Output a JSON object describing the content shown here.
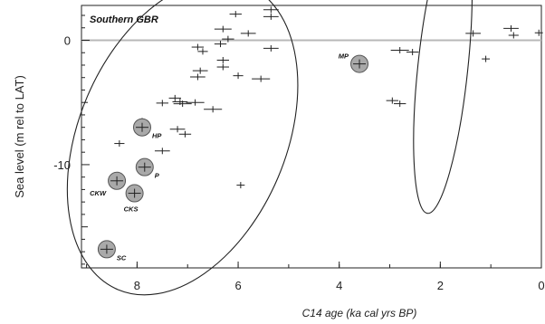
{
  "chart_data": {
    "type": "scatter",
    "title": "Southern GBR",
    "xlabel": "C14 age (ka cal yrs BP)",
    "ylabel": "Sea level (m rel to LAT)",
    "xlim": [
      9.1,
      0
    ],
    "ylim": [
      -18.3,
      2.8
    ],
    "x_ticks": [
      {
        "value": 8,
        "label": "8"
      },
      {
        "value": 6,
        "label": "6"
      },
      {
        "value": 4,
        "label": "4"
      },
      {
        "value": 2,
        "label": "2"
      },
      {
        "value": 0,
        "label": "0"
      }
    ],
    "y_ticks": [
      {
        "value": 0,
        "label": "0"
      },
      {
        "value": -10,
        "label": "-10"
      }
    ],
    "reference_line_y": 0,
    "points": [
      {
        "x": 6.3,
        "y": 0.9,
        "xerr": 0.17
      },
      {
        "x": 6.05,
        "y": 2.1,
        "xerr": 0.12
      },
      {
        "x": 5.35,
        "y": 2.45,
        "xerr": 0.15
      },
      {
        "x": 5.35,
        "y": 1.9,
        "xerr": 0.15
      },
      {
        "x": 5.8,
        "y": 0.55,
        "xerr": 0.15
      },
      {
        "x": 6.2,
        "y": 0.1,
        "xerr": 0.12
      },
      {
        "x": 6.8,
        "y": -0.55,
        "xerr": 0.12
      },
      {
        "x": 6.7,
        "y": -0.9,
        "xerr": 0.1
      },
      {
        "x": 6.35,
        "y": -0.3,
        "xerr": 0.12
      },
      {
        "x": 5.35,
        "y": -0.65,
        "xerr": 0.15
      },
      {
        "x": 6.3,
        "y": -1.6,
        "xerr": 0.12
      },
      {
        "x": 6.3,
        "y": -2.15,
        "xerr": 0.12
      },
      {
        "x": 6.75,
        "y": -2.45,
        "xerr": 0.15
      },
      {
        "x": 6.8,
        "y": -2.95,
        "xerr": 0.15
      },
      {
        "x": 6.0,
        "y": -2.85,
        "xerr": 0.1
      },
      {
        "x": 5.55,
        "y": -3.1,
        "xerr": 0.18
      },
      {
        "x": 7.25,
        "y": -4.65,
        "xerr": 0.12
      },
      {
        "x": 7.15,
        "y": -4.95,
        "xerr": 0.15
      },
      {
        "x": 7.1,
        "y": -5.1,
        "xerr": 0.18
      },
      {
        "x": 6.85,
        "y": -5.0,
        "xerr": 0.18
      },
      {
        "x": 6.5,
        "y": -5.55,
        "xerr": 0.18
      },
      {
        "x": 7.5,
        "y": -5.05,
        "xerr": 0.12
      },
      {
        "x": 7.9,
        "y": -6.5,
        "xerr": 0.12
      },
      {
        "x": 7.2,
        "y": -7.15,
        "xerr": 0.15
      },
      {
        "x": 7.05,
        "y": -7.55,
        "xerr": 0.12
      },
      {
        "x": 7.5,
        "y": -8.9,
        "xerr": 0.15
      },
      {
        "x": 8.35,
        "y": -8.3,
        "xerr": 0.1
      },
      {
        "x": 5.95,
        "y": -11.65,
        "xerr": 0.08
      },
      {
        "x": 2.8,
        "y": -0.8,
        "xerr": 0.18
      },
      {
        "x": 2.55,
        "y": -0.95,
        "xerr": 0.12
      },
      {
        "x": 1.35,
        "y": 0.55,
        "xerr": 0.15
      },
      {
        "x": 0.6,
        "y": 0.95,
        "xerr": 0.15
      },
      {
        "x": 0.55,
        "y": 0.4,
        "xerr": 0.1
      },
      {
        "x": 0.05,
        "y": 0.6,
        "xerr": 0.08
      },
      {
        "x": 1.1,
        "y": -1.5,
        "xerr": 0.08
      },
      {
        "x": 2.95,
        "y": -4.85,
        "xerr": 0.12
      },
      {
        "x": 2.8,
        "y": -5.1,
        "xerr": 0.12
      }
    ],
    "sites": [
      {
        "label": "MP",
        "x": 3.6,
        "y": -1.9
      },
      {
        "label": "HP",
        "x": 7.9,
        "y": -7.0
      },
      {
        "label": "P",
        "x": 7.85,
        "y": -10.2
      },
      {
        "label": "CKW",
        "x": 8.4,
        "y": -11.3
      },
      {
        "label": "CKS",
        "x": 8.05,
        "y": -12.3
      },
      {
        "label": "SC",
        "x": 8.6,
        "y": -16.8
      }
    ],
    "groups": [
      {
        "cx": 7.1,
        "cy": -7.8,
        "rx": 13.3,
        "ry": 2.05,
        "rotation_deg": 67
      },
      {
        "cx": 1.95,
        "cy": -2.2,
        "rx": 2.01,
        "ry": 2.9,
        "rotation_deg": -6
      }
    ]
  }
}
